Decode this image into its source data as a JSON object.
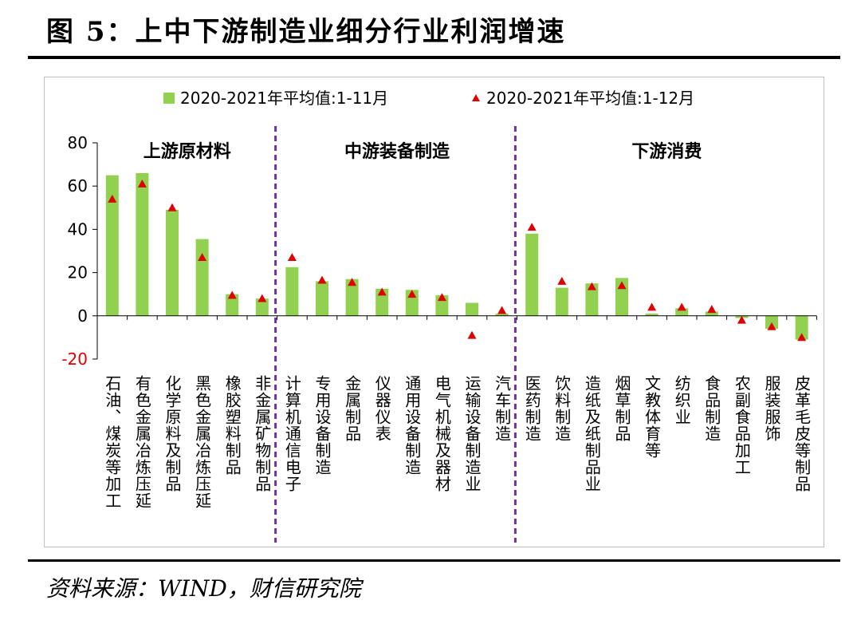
{
  "title": "图 5：上中下游制造业细分行业利润增速",
  "source": "资料来源：WIND，财信研究院",
  "colors": {
    "bar": "#92d050",
    "marker": "#e00000",
    "divider": "#7030a0"
  },
  "chart_data": {
    "type": "bar",
    "legend": [
      "2020-2021年平均值:1-11月",
      "2020-2021年平均值:1-12月"
    ],
    "legend_position": "top",
    "ylim": [
      -20,
      80
    ],
    "yticks": [
      80,
      60,
      40,
      20,
      0,
      -20
    ],
    "groups": [
      {
        "label": "上游原材料",
        "range": [
          0,
          5
        ]
      },
      {
        "label": "中游装备制造",
        "range": [
          6,
          13
        ]
      },
      {
        "label": "下游消费",
        "range": [
          14,
          23
        ]
      }
    ],
    "categories": [
      "石油、煤炭等加工",
      "有色金属冶炼压延",
      "化学原料及制品",
      "黑色金属冶炼压延",
      "橡胶塑料制品",
      "非金属矿物制品",
      "计算机通信电子",
      "专用设备制造",
      "金属制品",
      "仪器仪表",
      "通用设备制造",
      "电气机械及器材",
      "运输设备制造业",
      "汽车制造",
      "医药制造",
      "饮料制造",
      "造纸及纸制品业",
      "烟草制品",
      "文教体育等",
      "纺织业",
      "食品制造",
      "农副食品加工",
      "服装服饰",
      "皮革毛皮等制品"
    ],
    "series": [
      {
        "name": "2020-2021年平均值:1-11月",
        "type": "bar",
        "values": [
          65,
          66,
          49,
          35.5,
          10,
          8,
          22.5,
          16,
          17,
          12.5,
          12,
          9.5,
          6,
          1,
          38,
          13,
          15,
          17.5,
          1,
          3.5,
          2,
          -1,
          -6,
          -11
        ]
      },
      {
        "name": "2020-2021年平均值:1-12月",
        "type": "marker",
        "values": [
          54,
          61,
          50,
          27,
          9.5,
          8,
          27,
          16.5,
          15.5,
          11,
          10,
          8.5,
          -9,
          2.5,
          41,
          16,
          13.5,
          14,
          4,
          4,
          3,
          -2,
          -5,
          -10
        ]
      }
    ]
  }
}
